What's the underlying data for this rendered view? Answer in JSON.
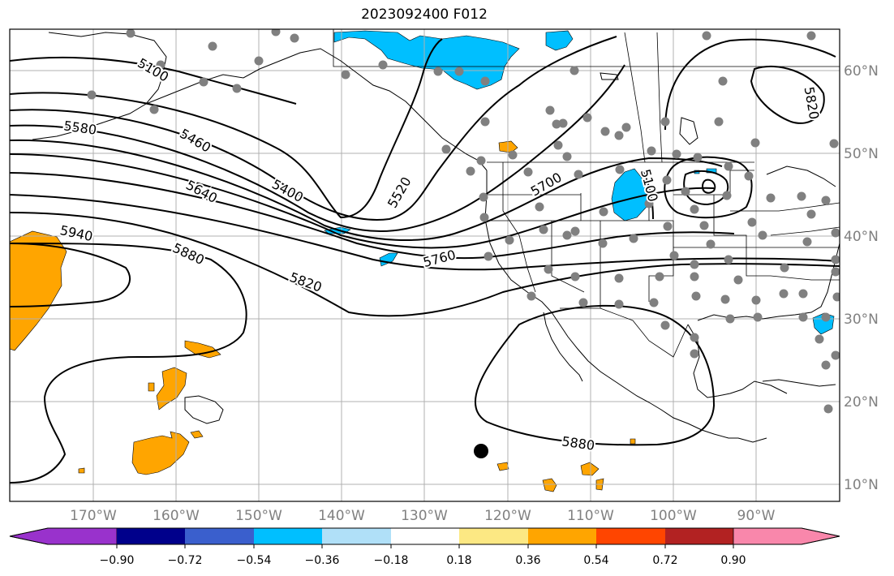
{
  "title": "2023092400 F012",
  "lon_ticks": [
    "170°W",
    "160°W",
    "150°W",
    "140°W",
    "130°W",
    "120°W",
    "110°W",
    "100°W",
    "90°W"
  ],
  "lat_ticks": [
    "60°N",
    "50°N",
    "40°N",
    "30°N",
    "20°N",
    "10°N"
  ],
  "contour_labels": [
    "5400",
    "5460",
    "5520",
    "5580",
    "5640",
    "5700",
    "5760",
    "5820",
    "5880",
    "5880",
    "5940",
    "5100",
    "5820",
    "5100"
  ],
  "colorbar": {
    "ticks": [
      "−0.90",
      "−0.72",
      "−0.54",
      "−0.36",
      "−0.18",
      "0.18",
      "0.36",
      "0.54",
      "0.72",
      "0.90"
    ],
    "colors": [
      "#9932cc",
      "#00008b",
      "#3a5fcd",
      "#00bfff",
      "#b0e0f8",
      "#ffffff",
      "#fce883",
      "#ffa500",
      "#ff4500",
      "#b22222",
      "#f987ab"
    ]
  },
  "colors": {
    "positive": "#ffa500",
    "negative": "#00bfff",
    "station": "#808080",
    "contour": "#000000",
    "grid": "#b0b0b0"
  }
}
